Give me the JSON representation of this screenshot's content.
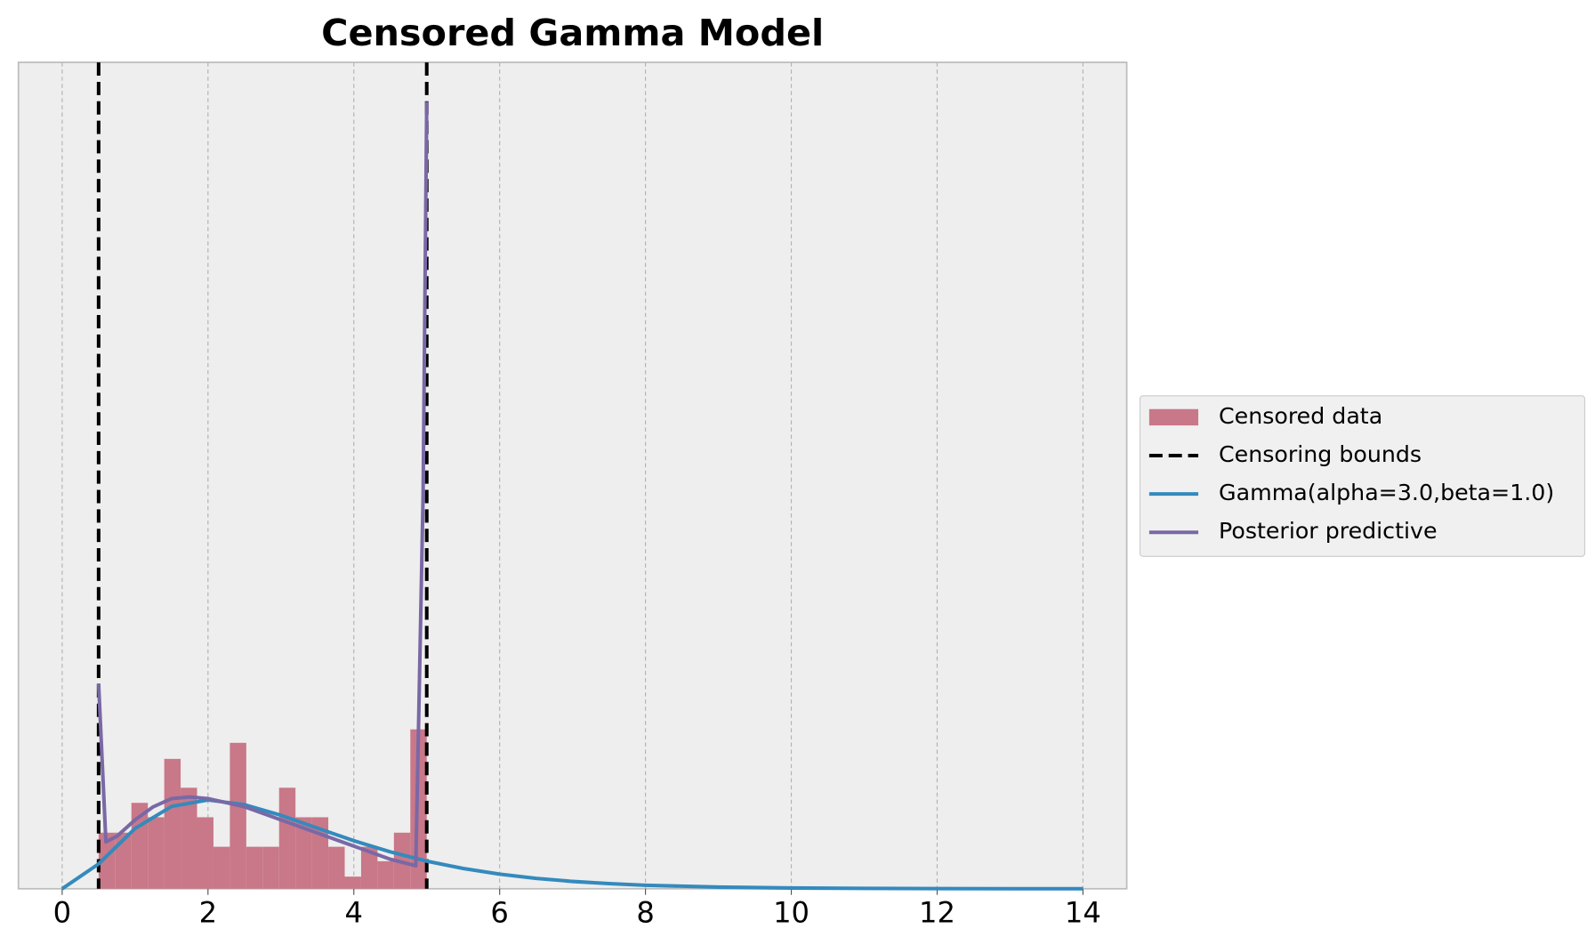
{
  "chart_data": {
    "type": "histogram",
    "title": "Censored Gamma Model",
    "name": "Censored data",
    "color": "#c87888",
    "bins": [
      0.5,
      0.725,
      0.95,
      1.175,
      1.4,
      1.625,
      1.85,
      2.075,
      2.3,
      2.525,
      2.75,
      2.975,
      3.2,
      3.425,
      3.65,
      3.875,
      4.1,
      4.325,
      4.55,
      4.775,
      5.0
    ],
    "values": [
      0.171,
      0.171,
      0.262,
      0.218,
      0.396,
      0.308,
      0.218,
      0.128,
      0.445,
      0.128,
      0.128,
      0.308,
      0.218,
      0.218,
      0.128,
      0.037,
      0.128,
      0.084,
      0.171,
      0.486
    ],
    "vlines": {
      "name": "Censoring bounds",
      "x": [
        0.5,
        5.0
      ],
      "color": "#000000",
      "style": "dashed"
    },
    "series": [
      {
        "type": "line",
        "name": "Gamma(alpha=3.0,beta=1.0)",
        "color": "#348abd",
        "x": [
          0,
          0.5,
          1,
          1.5,
          2,
          2.5,
          3,
          3.5,
          4,
          4.5,
          5,
          5.5,
          6,
          6.5,
          7,
          7.5,
          8,
          9,
          10,
          11,
          12,
          13,
          14
        ],
        "values": [
          0,
          0.0758,
          0.1839,
          0.251,
          0.2707,
          0.2565,
          0.224,
          0.185,
          0.1465,
          0.1125,
          0.0842,
          0.0618,
          0.0446,
          0.0318,
          0.0223,
          0.0156,
          0.0107,
          0.005,
          0.0023,
          0.001,
          0.0004,
          0.0002,
          0.0001
        ]
      },
      {
        "type": "line",
        "name": "Posterior predictive",
        "color": "#7a68a6",
        "x": [
          0.5,
          0.6,
          0.75,
          1.0,
          1.25,
          1.5,
          1.75,
          2.0,
          2.5,
          3.0,
          3.5,
          4.0,
          4.5,
          4.85,
          4.95,
          5.0
        ],
        "values": [
          0.626,
          0.143,
          0.16,
          0.21,
          0.25,
          0.275,
          0.28,
          0.275,
          0.25,
          0.21,
          0.17,
          0.13,
          0.09,
          0.07,
          1.2,
          2.4
        ]
      }
    ],
    "xlim": [
      -0.6,
      14.6
    ],
    "ylim": [
      0,
      2.52
    ],
    "xticks": [
      0,
      2,
      4,
      6,
      8,
      10,
      12,
      14
    ],
    "grid": true,
    "legend": "center right"
  }
}
